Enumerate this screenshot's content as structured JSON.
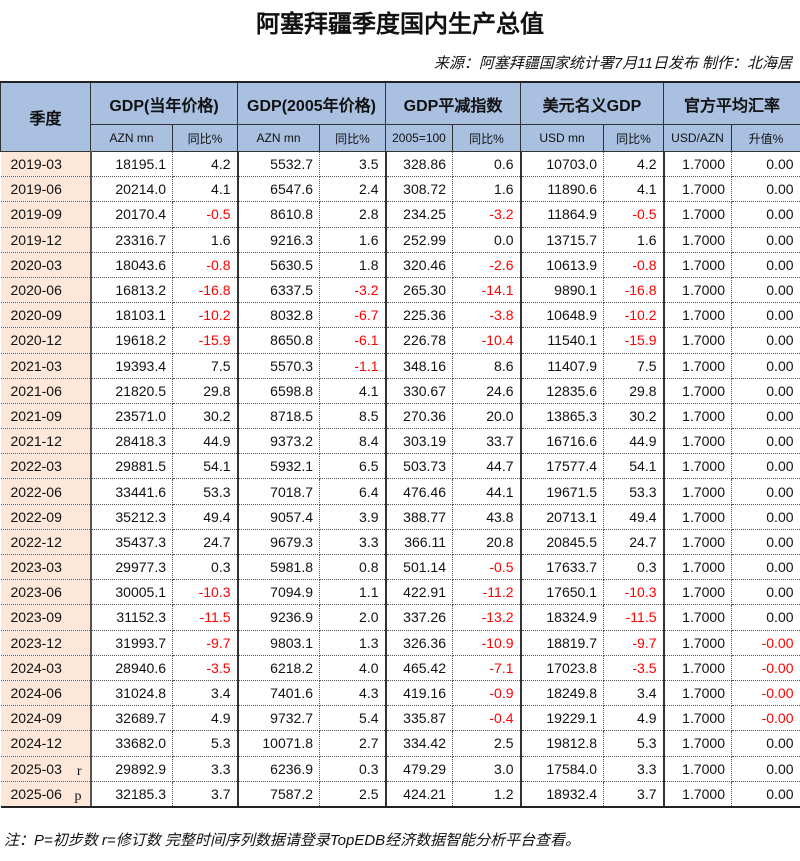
{
  "title": "阿塞拜疆季度国内生产总值",
  "source": "来源：阿塞拜疆国家统计署7月11日发布 制作：北海居",
  "header": {
    "period": "季度",
    "groups": [
      "GDP(当年价格)",
      "GDP(2005年价格)",
      "GDP平减指数",
      "美元名义GDP",
      "官方平均汇率"
    ],
    "subs": [
      "AZN mn",
      "同比%",
      "AZN mn",
      "同比%",
      "2005=100",
      "同比%",
      "USD mn",
      "同比%",
      "USD/AZN",
      "升值%"
    ]
  },
  "colors": {
    "header_bg": "#a9c0e0",
    "period_bg": "#fce7d9",
    "negative": "#ff0000"
  },
  "rows": [
    {
      "q": "2019-03",
      "m": "",
      "v": [
        "18195.1",
        "4.2",
        "5532.7",
        "3.5",
        "328.86",
        "0.6",
        "10703.0",
        "4.2",
        "1.7000",
        "0.00"
      ]
    },
    {
      "q": "2019-06",
      "m": "",
      "v": [
        "20214.0",
        "4.1",
        "6547.6",
        "2.4",
        "308.72",
        "1.6",
        "11890.6",
        "4.1",
        "1.7000",
        "0.00"
      ]
    },
    {
      "q": "2019-09",
      "m": "",
      "v": [
        "20170.4",
        "-0.5",
        "8610.8",
        "2.8",
        "234.25",
        "-3.2",
        "11864.9",
        "-0.5",
        "1.7000",
        "0.00"
      ]
    },
    {
      "q": "2019-12",
      "m": "",
      "v": [
        "23316.7",
        "1.6",
        "9216.3",
        "1.6",
        "252.99",
        "0.0",
        "13715.7",
        "1.6",
        "1.7000",
        "0.00"
      ]
    },
    {
      "q": "2020-03",
      "m": "",
      "v": [
        "18043.6",
        "-0.8",
        "5630.5",
        "1.8",
        "320.46",
        "-2.6",
        "10613.9",
        "-0.8",
        "1.7000",
        "0.00"
      ]
    },
    {
      "q": "2020-06",
      "m": "",
      "v": [
        "16813.2",
        "-16.8",
        "6337.5",
        "-3.2",
        "265.30",
        "-14.1",
        "9890.1",
        "-16.8",
        "1.7000",
        "0.00"
      ]
    },
    {
      "q": "2020-09",
      "m": "",
      "v": [
        "18103.1",
        "-10.2",
        "8032.8",
        "-6.7",
        "225.36",
        "-3.8",
        "10648.9",
        "-10.2",
        "1.7000",
        "0.00"
      ]
    },
    {
      "q": "2020-12",
      "m": "",
      "v": [
        "19618.2",
        "-15.9",
        "8650.8",
        "-6.1",
        "226.78",
        "-10.4",
        "11540.1",
        "-15.9",
        "1.7000",
        "0.00"
      ]
    },
    {
      "q": "2021-03",
      "m": "",
      "v": [
        "19393.4",
        "7.5",
        "5570.3",
        "-1.1",
        "348.16",
        "8.6",
        "11407.9",
        "7.5",
        "1.7000",
        "0.00"
      ]
    },
    {
      "q": "2021-06",
      "m": "",
      "v": [
        "21820.5",
        "29.8",
        "6598.8",
        "4.1",
        "330.67",
        "24.6",
        "12835.6",
        "29.8",
        "1.7000",
        "0.00"
      ]
    },
    {
      "q": "2021-09",
      "m": "",
      "v": [
        "23571.0",
        "30.2",
        "8718.5",
        "8.5",
        "270.36",
        "20.0",
        "13865.3",
        "30.2",
        "1.7000",
        "0.00"
      ]
    },
    {
      "q": "2021-12",
      "m": "",
      "v": [
        "28418.3",
        "44.9",
        "9373.2",
        "8.4",
        "303.19",
        "33.7",
        "16716.6",
        "44.9",
        "1.7000",
        "0.00"
      ]
    },
    {
      "q": "2022-03",
      "m": "",
      "v": [
        "29881.5",
        "54.1",
        "5932.1",
        "6.5",
        "503.73",
        "44.7",
        "17577.4",
        "54.1",
        "1.7000",
        "0.00"
      ]
    },
    {
      "q": "2022-06",
      "m": "",
      "v": [
        "33441.6",
        "53.3",
        "7018.7",
        "6.4",
        "476.46",
        "44.1",
        "19671.5",
        "53.3",
        "1.7000",
        "0.00"
      ]
    },
    {
      "q": "2022-09",
      "m": "",
      "v": [
        "35212.3",
        "49.4",
        "9057.4",
        "3.9",
        "388.77",
        "43.8",
        "20713.1",
        "49.4",
        "1.7000",
        "0.00"
      ]
    },
    {
      "q": "2022-12",
      "m": "",
      "v": [
        "35437.3",
        "24.7",
        "9679.3",
        "3.3",
        "366.11",
        "20.8",
        "20845.5",
        "24.7",
        "1.7000",
        "0.00"
      ]
    },
    {
      "q": "2023-03",
      "m": "",
      "v": [
        "29977.3",
        "0.3",
        "5981.8",
        "0.8",
        "501.14",
        "-0.5",
        "17633.7",
        "0.3",
        "1.7000",
        "0.00"
      ]
    },
    {
      "q": "2023-06",
      "m": "",
      "v": [
        "30005.1",
        "-10.3",
        "7094.9",
        "1.1",
        "422.91",
        "-11.2",
        "17650.1",
        "-10.3",
        "1.7000",
        "0.00"
      ]
    },
    {
      "q": "2023-09",
      "m": "",
      "v": [
        "31152.3",
        "-11.5",
        "9236.9",
        "2.0",
        "337.26",
        "-13.2",
        "18324.9",
        "-11.5",
        "1.7000",
        "0.00"
      ]
    },
    {
      "q": "2023-12",
      "m": "",
      "v": [
        "31993.7",
        "-9.7",
        "9803.1",
        "1.3",
        "326.36",
        "-10.9",
        "18819.7",
        "-9.7",
        "1.7000",
        "-0.00"
      ]
    },
    {
      "q": "2024-03",
      "m": "",
      "v": [
        "28940.6",
        "-3.5",
        "6218.2",
        "4.0",
        "465.42",
        "-7.1",
        "17023.8",
        "-3.5",
        "1.7000",
        "-0.00"
      ]
    },
    {
      "q": "2024-06",
      "m": "",
      "v": [
        "31024.8",
        "3.4",
        "7401.6",
        "4.3",
        "419.16",
        "-0.9",
        "18249.8",
        "3.4",
        "1.7000",
        "-0.00"
      ]
    },
    {
      "q": "2024-09",
      "m": "",
      "v": [
        "32689.7",
        "4.9",
        "9732.7",
        "5.4",
        "335.87",
        "-0.4",
        "19229.1",
        "4.9",
        "1.7000",
        "-0.00"
      ]
    },
    {
      "q": "2024-12",
      "m": "",
      "v": [
        "33682.0",
        "5.3",
        "10071.8",
        "2.7",
        "334.42",
        "2.5",
        "19812.8",
        "5.3",
        "1.7000",
        "0.00"
      ]
    },
    {
      "q": "2025-03",
      "m": "r",
      "v": [
        "29892.9",
        "3.3",
        "6236.9",
        "0.3",
        "479.29",
        "3.0",
        "17584.0",
        "3.3",
        "1.7000",
        "0.00"
      ]
    },
    {
      "q": "2025-06",
      "m": "p",
      "v": [
        "32185.3",
        "3.7",
        "7587.2",
        "2.5",
        "424.21",
        "1.2",
        "18932.4",
        "3.7",
        "1.7000",
        "0.00"
      ]
    }
  ],
  "note": "注：P=初步数 r=修订数 完整时间序列数据请登录TopEDB经济数据智能分析平台查看。"
}
